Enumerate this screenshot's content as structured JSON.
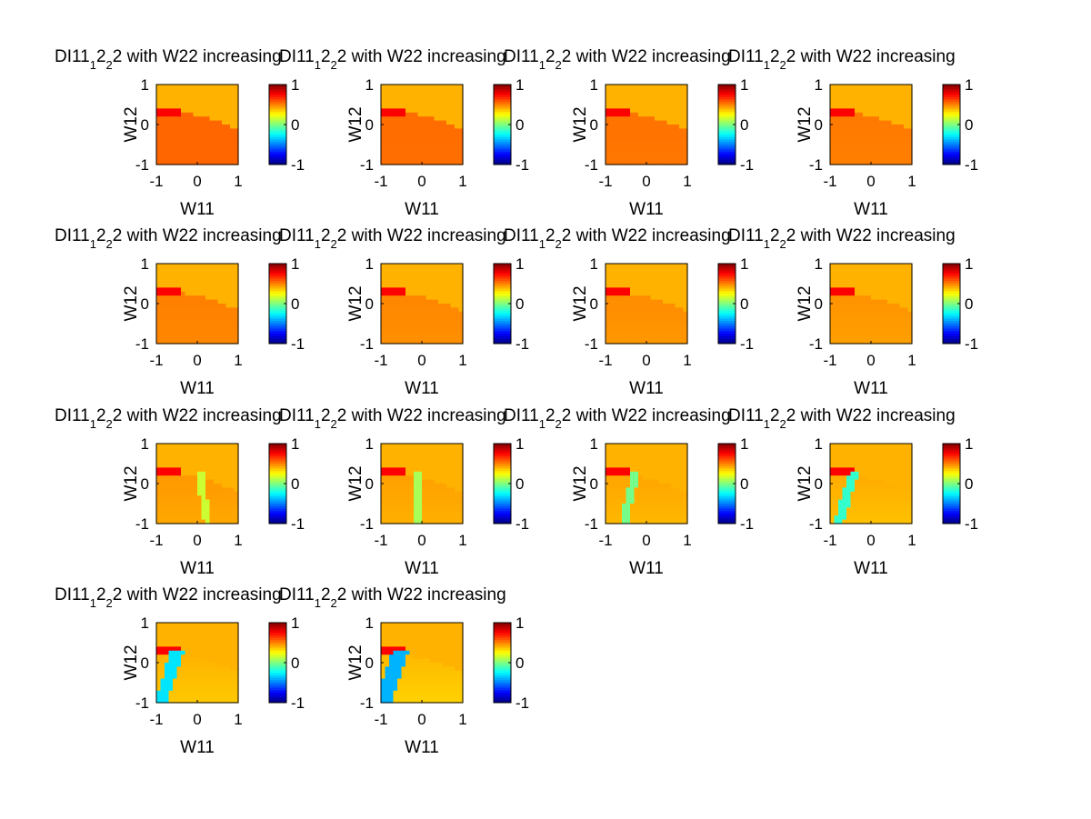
{
  "figure": {
    "background": "#ffffff",
    "colormap": "jet",
    "background_level": 0.4,
    "colormap_stops": [
      "#00008f",
      "#0000ff",
      "#00ffff",
      "#ffff00",
      "#ff0000",
      "#800000"
    ]
  },
  "chart_data": [
    {
      "type": "heatmap",
      "title_parts": [
        "DI11",
        "1",
        "2",
        "2",
        "2 with W22 increasing"
      ],
      "xlabel": "W11",
      "ylabel": "W12",
      "xticks": [
        "-1",
        "0",
        "1"
      ],
      "yticks": [
        "-1",
        "0",
        "1"
      ],
      "xlim": [
        -1,
        1
      ],
      "ylim": [
        -1,
        1
      ],
      "clim": [
        -1,
        1
      ],
      "colorbar_ticks": [
        "-1",
        "0",
        "1"
      ],
      "w22_step": 0,
      "band": {
        "present": false
      }
    },
    {
      "type": "heatmap",
      "title_parts": [
        "DI11",
        "1",
        "2",
        "2",
        "2 with W22 increasing"
      ],
      "xlabel": "W11",
      "ylabel": "W12",
      "xticks": [
        "-1",
        "0",
        "1"
      ],
      "yticks": [
        "-1",
        "0",
        "1"
      ],
      "xlim": [
        -1,
        1
      ],
      "ylim": [
        -1,
        1
      ],
      "clim": [
        -1,
        1
      ],
      "colorbar_ticks": [
        "-1",
        "0",
        "1"
      ],
      "w22_step": 1,
      "band": {
        "present": false
      }
    },
    {
      "type": "heatmap",
      "title_parts": [
        "DI11",
        "1",
        "2",
        "2",
        "2 with W22 increasing"
      ],
      "xlabel": "W11",
      "ylabel": "W12",
      "xticks": [
        "-1",
        "0",
        "1"
      ],
      "yticks": [
        "-1",
        "0",
        "1"
      ],
      "xlim": [
        -1,
        1
      ],
      "ylim": [
        -1,
        1
      ],
      "clim": [
        -1,
        1
      ],
      "colorbar_ticks": [
        "-1",
        "0",
        "1"
      ],
      "w22_step": 2,
      "band": {
        "present": false
      }
    },
    {
      "type": "heatmap",
      "title_parts": [
        "DI11",
        "1",
        "2",
        "2",
        "2 with W22 increasing"
      ],
      "xlabel": "W11",
      "ylabel": "W12",
      "xticks": [
        "-1",
        "0",
        "1"
      ],
      "yticks": [
        "-1",
        "0",
        "1"
      ],
      "xlim": [
        -1,
        1
      ],
      "ylim": [
        -1,
        1
      ],
      "clim": [
        -1,
        1
      ],
      "colorbar_ticks": [
        "-1",
        "0",
        "1"
      ],
      "w22_step": 3,
      "band": {
        "present": false
      }
    },
    {
      "type": "heatmap",
      "title_parts": [
        "DI11",
        "1",
        "2",
        "2",
        "2 with W22 increasing"
      ],
      "xlabel": "W11",
      "ylabel": "W12",
      "xticks": [
        "-1",
        "0",
        "1"
      ],
      "yticks": [
        "-1",
        "0",
        "1"
      ],
      "xlim": [
        -1,
        1
      ],
      "ylim": [
        -1,
        1
      ],
      "clim": [
        -1,
        1
      ],
      "colorbar_ticks": [
        "-1",
        "0",
        "1"
      ],
      "w22_step": 4,
      "band": {
        "present": false
      }
    },
    {
      "type": "heatmap",
      "title_parts": [
        "DI11",
        "1",
        "2",
        "2",
        "2 with W22 increasing"
      ],
      "xlabel": "W11",
      "ylabel": "W12",
      "xticks": [
        "-1",
        "0",
        "1"
      ],
      "yticks": [
        "-1",
        "0",
        "1"
      ],
      "xlim": [
        -1,
        1
      ],
      "ylim": [
        -1,
        1
      ],
      "clim": [
        -1,
        1
      ],
      "colorbar_ticks": [
        "-1",
        "0",
        "1"
      ],
      "w22_step": 5,
      "band": {
        "present": false
      }
    },
    {
      "type": "heatmap",
      "title_parts": [
        "DI11",
        "1",
        "2",
        "2",
        "2 with W22 increasing"
      ],
      "xlabel": "W11",
      "ylabel": "W12",
      "xticks": [
        "-1",
        "0",
        "1"
      ],
      "yticks": [
        "-1",
        "0",
        "1"
      ],
      "xlim": [
        -1,
        1
      ],
      "ylim": [
        -1,
        1
      ],
      "clim": [
        -1,
        1
      ],
      "colorbar_ticks": [
        "-1",
        "0",
        "1"
      ],
      "w22_step": 6,
      "band": {
        "present": false
      }
    },
    {
      "type": "heatmap",
      "title_parts": [
        "DI11",
        "1",
        "2",
        "2",
        "2 with W22 increasing"
      ],
      "xlabel": "W11",
      "ylabel": "W12",
      "xticks": [
        "-1",
        "0",
        "1"
      ],
      "yticks": [
        "-1",
        "0",
        "1"
      ],
      "xlim": [
        -1,
        1
      ],
      "ylim": [
        -1,
        1
      ],
      "clim": [
        -1,
        1
      ],
      "colorbar_ticks": [
        "-1",
        "0",
        "1"
      ],
      "w22_step": 7,
      "band": {
        "present": false
      }
    },
    {
      "type": "heatmap",
      "title_parts": [
        "DI11",
        "1",
        "2",
        "2",
        "2 with W22 increasing"
      ],
      "xlabel": "W11",
      "ylabel": "W12",
      "xticks": [
        "-1",
        "0",
        "1"
      ],
      "yticks": [
        "-1",
        "0",
        "1"
      ],
      "xlim": [
        -1,
        1
      ],
      "ylim": [
        -1,
        1
      ],
      "clim": [
        -1,
        1
      ],
      "colorbar_ticks": [
        "-1",
        "0",
        "1"
      ],
      "w22_step": 8,
      "band": {
        "present": true,
        "w11_bottom": 0.25,
        "w11_top": -0.05,
        "half_width": 0.09,
        "value": 0.15
      }
    },
    {
      "type": "heatmap",
      "title_parts": [
        "DI11",
        "1",
        "2",
        "2",
        "2 with W22 increasing"
      ],
      "xlabel": "W11",
      "ylabel": "W12",
      "xticks": [
        "-1",
        "0",
        "1"
      ],
      "yticks": [
        "-1",
        "0",
        "1"
      ],
      "xlim": [
        -1,
        1
      ],
      "ylim": [
        -1,
        1
      ],
      "clim": [
        -1,
        1
      ],
      "colorbar_ticks": [
        "-1",
        "0",
        "1"
      ],
      "w22_step": 9,
      "band": {
        "present": true,
        "w11_bottom": -0.1,
        "w11_top": -0.1,
        "half_width": 0.09,
        "value": 0.08
      }
    },
    {
      "type": "heatmap",
      "title_parts": [
        "DI11",
        "1",
        "2",
        "2",
        "2 with W22 increasing"
      ],
      "xlabel": "W11",
      "ylabel": "W12",
      "xticks": [
        "-1",
        "0",
        "1"
      ],
      "yticks": [
        "-1",
        "0",
        "1"
      ],
      "xlim": [
        -1,
        1
      ],
      "ylim": [
        -1,
        1
      ],
      "clim": [
        -1,
        1
      ],
      "colorbar_ticks": [
        "-1",
        "0",
        "1"
      ],
      "w22_step": 10,
      "band": {
        "present": true,
        "w11_bottom": -0.55,
        "w11_top": -0.12,
        "half_width": 0.1,
        "value": -0.02
      }
    },
    {
      "type": "heatmap",
      "title_parts": [
        "DI11",
        "1",
        "2",
        "2",
        "2 with W22 increasing"
      ],
      "xlabel": "W11",
      "ylabel": "W12",
      "xticks": [
        "-1",
        "0",
        "1"
      ],
      "yticks": [
        "-1",
        "0",
        "1"
      ],
      "xlim": [
        -1,
        1
      ],
      "ylim": [
        -1,
        1
      ],
      "clim": [
        -1,
        1
      ],
      "colorbar_ticks": [
        "-1",
        "0",
        "1"
      ],
      "w22_step": 11,
      "band": {
        "present": true,
        "w11_bottom": -0.8,
        "w11_top": -0.2,
        "half_width": 0.12,
        "value": -0.15
      }
    },
    {
      "type": "heatmap",
      "title_parts": [
        "DI11",
        "1",
        "2",
        "2",
        "2 with W22 increasing"
      ],
      "xlabel": "W11",
      "ylabel": "W12",
      "xticks": [
        "-1",
        "0",
        "1"
      ],
      "yticks": [
        "-1",
        "0",
        "1"
      ],
      "xlim": [
        -1,
        1
      ],
      "ylim": [
        -1,
        1
      ],
      "clim": [
        -1,
        1
      ],
      "colorbar_ticks": [
        "-1",
        "0",
        "1"
      ],
      "w22_step": 12,
      "band": {
        "present": true,
        "w11_bottom": -0.9,
        "w11_top": -0.25,
        "half_width": 0.16,
        "value": -0.3
      }
    },
    {
      "type": "heatmap",
      "title_parts": [
        "DI11",
        "1",
        "2",
        "2",
        "2 with W22 increasing"
      ],
      "xlabel": "W11",
      "ylabel": "W12",
      "xticks": [
        "-1",
        "0",
        "1"
      ],
      "yticks": [
        "-1",
        "0",
        "1"
      ],
      "xlim": [
        -1,
        1
      ],
      "ylim": [
        -1,
        1
      ],
      "clim": [
        -1,
        1
      ],
      "colorbar_ticks": [
        "-1",
        "0",
        "1"
      ],
      "w22_step": 13,
      "band": {
        "present": true,
        "w11_bottom": -0.95,
        "w11_top": -0.3,
        "half_width": 0.2,
        "value": -0.4
      }
    }
  ]
}
